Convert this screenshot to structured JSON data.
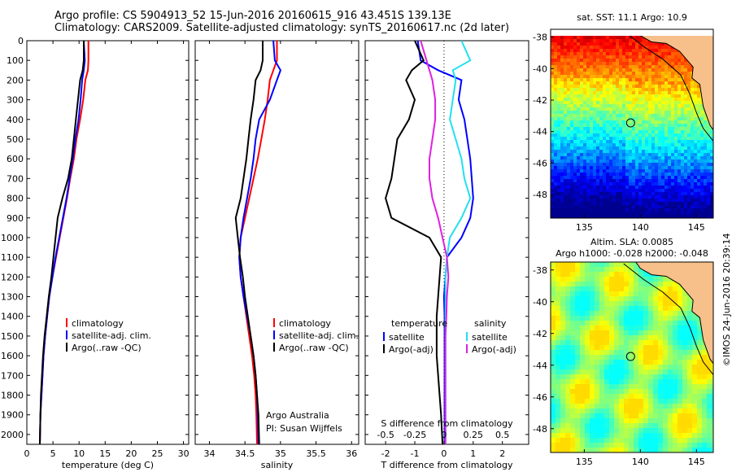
{
  "header": {
    "line1": "Argo profile: CS 5904913_52 15-Jun-2016 20160615_916 43.451S 139.13E",
    "line2": "Climatology: CARS2009. Satellite-adjusted climatology: synTS_20160617.nc (2d later)"
  },
  "credit": "©IMOS 24-Jun-2016 20:39:14",
  "colors": {
    "climatology": "#ff0000",
    "satellite": "#0000ff",
    "argo": "#000000",
    "sat_cyan": "#22e0f0",
    "argo_magenta": "#e020e0",
    "land": "#f7c08a"
  },
  "chart_data": [
    {
      "type": "line",
      "id": "temperature",
      "xlabel": "temperature (deg C)",
      "ylabel": "",
      "xlim": [
        0,
        31
      ],
      "ylim": [
        2050,
        0
      ],
      "xticks": [
        "0",
        "5",
        "10",
        "15",
        "20",
        "25",
        "30"
      ],
      "yticks": [
        "0",
        "100",
        "200",
        "300",
        "400",
        "500",
        "600",
        "700",
        "800",
        "900",
        "1000",
        "1100",
        "1200",
        "1300",
        "1400",
        "1500",
        "1600",
        "1700",
        "1800",
        "1900",
        "2000"
      ],
      "series": [
        {
          "name": "climatology",
          "color": "#ff0000",
          "x": [
            11.8,
            11.8,
            11.7,
            11.2,
            10.8,
            10.2,
            9.5,
            9.0,
            8.3,
            7.7,
            7.0,
            6.3,
            5.6,
            4.9,
            4.3,
            3.9,
            3.5,
            3.2,
            3.0,
            2.8,
            2.6,
            2.5
          ],
          "y": [
            0,
            100,
            150,
            200,
            300,
            400,
            500,
            600,
            700,
            800,
            900,
            1000,
            1100,
            1200,
            1300,
            1400,
            1500,
            1600,
            1700,
            1800,
            1900,
            2050
          ]
        },
        {
          "name": "satellite-adj. clim.",
          "color": "#0000ff",
          "x": [
            10.9,
            11.1,
            10.9,
            10.6,
            10.3,
            9.9,
            9.3,
            8.8,
            8.2,
            7.6,
            6.9,
            6.2,
            5.5,
            4.9,
            4.3,
            3.9,
            3.5,
            3.2,
            3.0,
            2.8,
            2.6,
            2.5
          ],
          "y": [
            0,
            100,
            150,
            200,
            300,
            400,
            500,
            600,
            700,
            800,
            900,
            1000,
            1100,
            1200,
            1300,
            1400,
            1500,
            1600,
            1700,
            1800,
            1900,
            2050
          ]
        },
        {
          "name": "Argo(..raw -QC)",
          "color": "#000000",
          "x": [
            10.9,
            10.9,
            10.7,
            10.2,
            9.8,
            9.4,
            9.0,
            8.6,
            7.9,
            6.8,
            5.9,
            5.5,
            5.1,
            4.7,
            4.2,
            3.8,
            3.4,
            3.1,
            2.9,
            2.7,
            2.6,
            2.5
          ],
          "y": [
            0,
            100,
            150,
            200,
            300,
            400,
            500,
            600,
            700,
            800,
            900,
            1000,
            1100,
            1200,
            1300,
            1400,
            1500,
            1600,
            1700,
            1800,
            1900,
            2050
          ]
        }
      ],
      "legend": [
        "climatology",
        "satellite-adj. clim.",
        "Argo(..raw -QC)"
      ]
    },
    {
      "type": "line",
      "id": "salinity",
      "xlabel": "salinity",
      "xlim": [
        33.8,
        36.1
      ],
      "ylim": [
        2050,
        0
      ],
      "xticks": [
        "34",
        "34.5",
        "35",
        "35.5",
        "36"
      ],
      "series": [
        {
          "name": "climatology",
          "color": "#ff0000",
          "x": [
            34.95,
            34.95,
            34.9,
            34.85,
            34.82,
            34.78,
            34.73,
            34.68,
            34.62,
            34.56,
            34.5,
            34.44,
            34.42,
            34.44,
            34.48,
            34.52,
            34.56,
            34.6,
            34.63,
            34.65,
            34.66,
            34.67
          ],
          "y": [
            0,
            100,
            150,
            200,
            300,
            400,
            500,
            600,
            700,
            800,
            900,
            1000,
            1100,
            1200,
            1300,
            1400,
            1500,
            1600,
            1700,
            1800,
            1900,
            2050
          ]
        },
        {
          "name": "satellite-adj. clim.",
          "color": "#0000ff",
          "x": [
            34.9,
            34.92,
            35.0,
            34.95,
            34.85,
            34.7,
            34.65,
            34.62,
            34.58,
            34.53,
            34.48,
            34.44,
            34.42,
            34.44,
            34.48,
            34.53,
            34.58,
            34.62,
            34.65,
            34.67,
            34.68,
            34.69
          ],
          "y": [
            0,
            100,
            150,
            200,
            300,
            400,
            500,
            600,
            700,
            800,
            900,
            1000,
            1100,
            1200,
            1300,
            1400,
            1500,
            1600,
            1700,
            1800,
            1900,
            2050
          ]
        },
        {
          "name": "Argo(..raw -QC)",
          "color": "#000000",
          "x": [
            34.75,
            34.75,
            34.72,
            34.65,
            34.62,
            34.58,
            34.55,
            34.52,
            34.48,
            34.44,
            34.37,
            34.4,
            34.43,
            34.47,
            34.5,
            34.54,
            34.58,
            34.62,
            34.65,
            34.67,
            34.69,
            34.7
          ],
          "y": [
            0,
            100,
            150,
            200,
            300,
            400,
            500,
            600,
            700,
            800,
            900,
            1000,
            1100,
            1200,
            1300,
            1400,
            1500,
            1600,
            1700,
            1800,
            1900,
            2050
          ]
        }
      ],
      "legend": [
        "climatology",
        "satellite-adj. clim.",
        "Argo(..raw -QC)"
      ],
      "annotation": [
        "Argo Australia",
        "PI: Susan Wijffels"
      ]
    },
    {
      "type": "line",
      "id": "difference",
      "xlabel": "T difference from climatology",
      "toplabel": "S difference from climatology",
      "xlim": [
        -2.7,
        2.9
      ],
      "ylim": [
        2050,
        0
      ],
      "xticks": [
        "-2",
        "-1",
        "0",
        "1",
        "2"
      ],
      "topticks": [
        "-0.5",
        "-0.25",
        "0",
        "0.25",
        "0.5"
      ],
      "series": [
        {
          "name": "temperature satellite",
          "color": "#0000ff",
          "x": [
            -0.9,
            -0.8,
            -0.2,
            0.6,
            0.5,
            0.7,
            0.8,
            0.9,
            0.95,
            1.0,
            0.9,
            0.6,
            0.1,
            0.05,
            0.0,
            0.02,
            0.02,
            0.02,
            0.02,
            0.02,
            0.02,
            0.02
          ],
          "y": [
            0,
            100,
            150,
            200,
            300,
            400,
            500,
            600,
            700,
            800,
            900,
            1000,
            1100,
            1200,
            1300,
            1400,
            1500,
            1600,
            1700,
            1800,
            1900,
            2050
          ]
        },
        {
          "name": "temperature Argo(-adj)",
          "color": "#000000",
          "x": [
            -1.0,
            -0.7,
            -1.1,
            -1.3,
            -1.0,
            -1.2,
            -1.6,
            -1.7,
            -1.8,
            -2.0,
            -1.8,
            -0.5,
            -0.1,
            -0.15,
            -0.2,
            -0.25,
            -0.25,
            -0.25,
            -0.2,
            -0.15,
            -0.1,
            -0.05
          ],
          "y": [
            0,
            100,
            150,
            200,
            300,
            400,
            500,
            600,
            700,
            800,
            900,
            1000,
            1100,
            1200,
            1300,
            1400,
            1500,
            1600,
            1700,
            1800,
            1900,
            2050
          ]
        },
        {
          "name": "salinity satellite",
          "color": "#22e0f0",
          "x": [
            0.6,
            0.9,
            0.3,
            0.4,
            0.3,
            0.2,
            0.4,
            0.6,
            0.7,
            0.9,
            0.6,
            0.2,
            0.1,
            0.05,
            0.05,
            0.05,
            0.05,
            0.05,
            0.05,
            0.05,
            0.05,
            0.05
          ],
          "y": [
            0,
            100,
            150,
            200,
            300,
            400,
            500,
            600,
            700,
            800,
            900,
            1000,
            1100,
            1200,
            1300,
            1400,
            1500,
            1600,
            1700,
            1800,
            1900,
            2050
          ]
        },
        {
          "name": "salinity Argo(-adj)",
          "color": "#e020e0",
          "x": [
            -0.8,
            -0.6,
            -0.5,
            -0.4,
            -0.3,
            -0.3,
            -0.4,
            -0.5,
            -0.5,
            -0.4,
            -0.2,
            -0.05,
            0.1,
            0.15,
            0.1,
            0.08,
            0.05,
            0.05,
            0.05,
            0.05,
            0.05,
            0.05
          ],
          "y": [
            0,
            100,
            150,
            200,
            300,
            400,
            500,
            600,
            700,
            800,
            900,
            1000,
            1100,
            1200,
            1300,
            1400,
            1500,
            1600,
            1700,
            1800,
            1900,
            2050
          ]
        }
      ],
      "legend_heads": [
        "temperature",
        "salinity"
      ],
      "legend": [
        "satellite",
        "Argo(-adj)",
        "satellite",
        "Argo(-adj)"
      ]
    },
    {
      "type": "heatmap",
      "id": "sst_map",
      "title": "sat. SST: 11.1 Argo: 10.9",
      "xticks": [
        "135",
        "140",
        "145"
      ],
      "yticks": [
        "-38",
        "-40",
        "-42",
        "-44",
        "-46",
        "-48"
      ],
      "xlim": [
        132,
        146.5
      ],
      "ylim": [
        -49.5,
        -37.5
      ],
      "marker": {
        "lon": 139.13,
        "lat": -43.45
      }
    },
    {
      "type": "heatmap",
      "id": "sla_map",
      "title": "Altim. SLA: 0.0085",
      "subtitle": "Argo h1000: -0.028 h2000: -0.048",
      "xticks": [
        "135",
        "140",
        "145"
      ],
      "yticks": [
        "-38",
        "-40",
        "-42",
        "-44",
        "-46",
        "-48"
      ],
      "xlim": [
        132,
        146.5
      ],
      "ylim": [
        -49.5,
        -37.5
      ],
      "marker": {
        "lon": 139.13,
        "lat": -43.45
      }
    }
  ]
}
